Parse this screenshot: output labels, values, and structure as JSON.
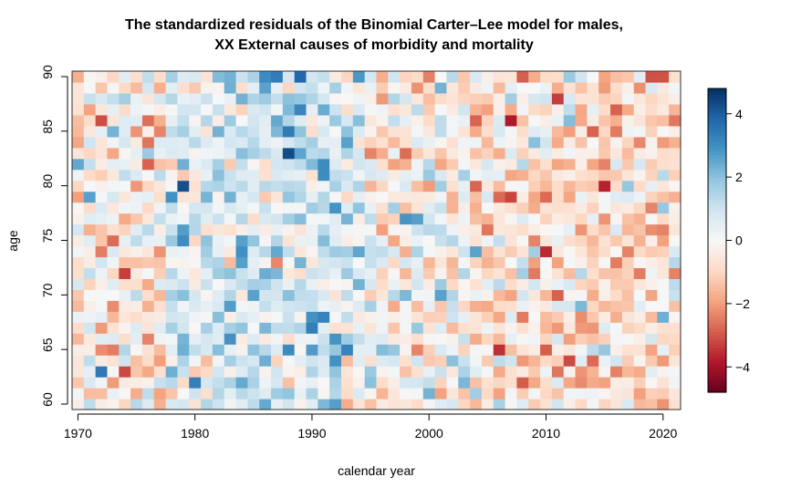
{
  "chart_data": {
    "type": "heatmap",
    "title_line1": "The standardized residuals of the Binomial Carter–Lee model for males,",
    "title_line2": "XX External causes of morbidity and mortality",
    "xlabel": "calendar year",
    "ylabel": "age",
    "x_range": [
      1970,
      2021
    ],
    "y_range": [
      60,
      90
    ],
    "x_ticks": [
      1970,
      1980,
      1990,
      2000,
      2010,
      2020
    ],
    "y_ticks": [
      60,
      65,
      70,
      75,
      80,
      85,
      90
    ],
    "colorbar_range": [
      -4.8,
      4.8
    ],
    "colorbar_ticks": [
      4,
      2,
      0,
      -2,
      -4
    ],
    "colormap": [
      "#67001f",
      "#b2182b",
      "#d6604d",
      "#f4a582",
      "#fddbc7",
      "#f7f7f7",
      "#d1e5f0",
      "#92c5de",
      "#4393c3",
      "#2166ac",
      "#053061"
    ],
    "grid": false,
    "legend": "colorbar-right"
  }
}
